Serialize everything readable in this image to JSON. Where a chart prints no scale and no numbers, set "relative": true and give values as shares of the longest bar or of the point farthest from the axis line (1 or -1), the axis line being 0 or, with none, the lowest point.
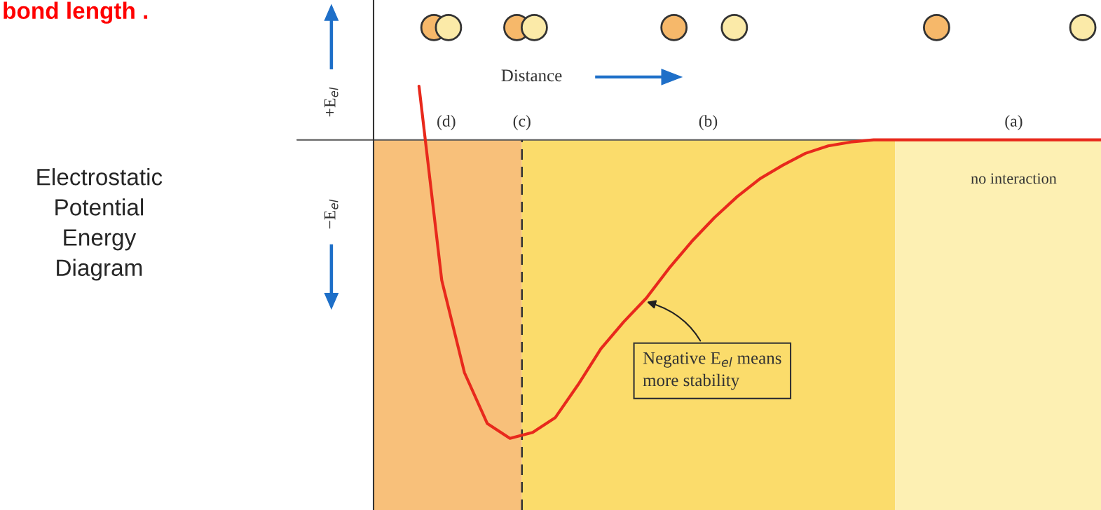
{
  "chart_data": {
    "type": "line",
    "title": "Electrostatic\nPotential\nEnergy\nDiagram",
    "xlabel": "Distance",
    "ylabel": "+E$_{el}$",
    "relative": true,
    "categories": [
      null,
      null,
      null,
      null,
      null,
      null,
      null,
      null,
      null,
      null,
      null,
      null,
      null,
      null,
      null,
      null,
      null,
      null,
      null,
      null,
      null,
      null,
      null,
      null,
      null,
      null,
      null,
      null,
      null,
      null,
      null,
      null,
      null
    ],
    "series": [
      {
        "color": "#e8291c",
        "values": [
          null,
          null,
          0.18,
          -0.47,
          -0.78,
          -0.95,
          -1,
          -0.98,
          -0.93,
          -0.82,
          -0.7,
          -0.61,
          -0.53,
          -0.43,
          -0.34,
          -0.26,
          -0.19,
          -0.13,
          -0.085,
          -0.045,
          -0.02,
          -0.007,
          0,
          0,
          0,
          0,
          0,
          0,
          0,
          0,
          0,
          0,
          0
        ]
      }
    ],
    "annotations": [
      "bond length .",
      "−E$_{el}$",
      "no interaction",
      "Negative E$_{el}$ means\nmore stability",
      "(d)",
      "(c)",
      "(b)",
      "(a)"
    ]
  }
}
